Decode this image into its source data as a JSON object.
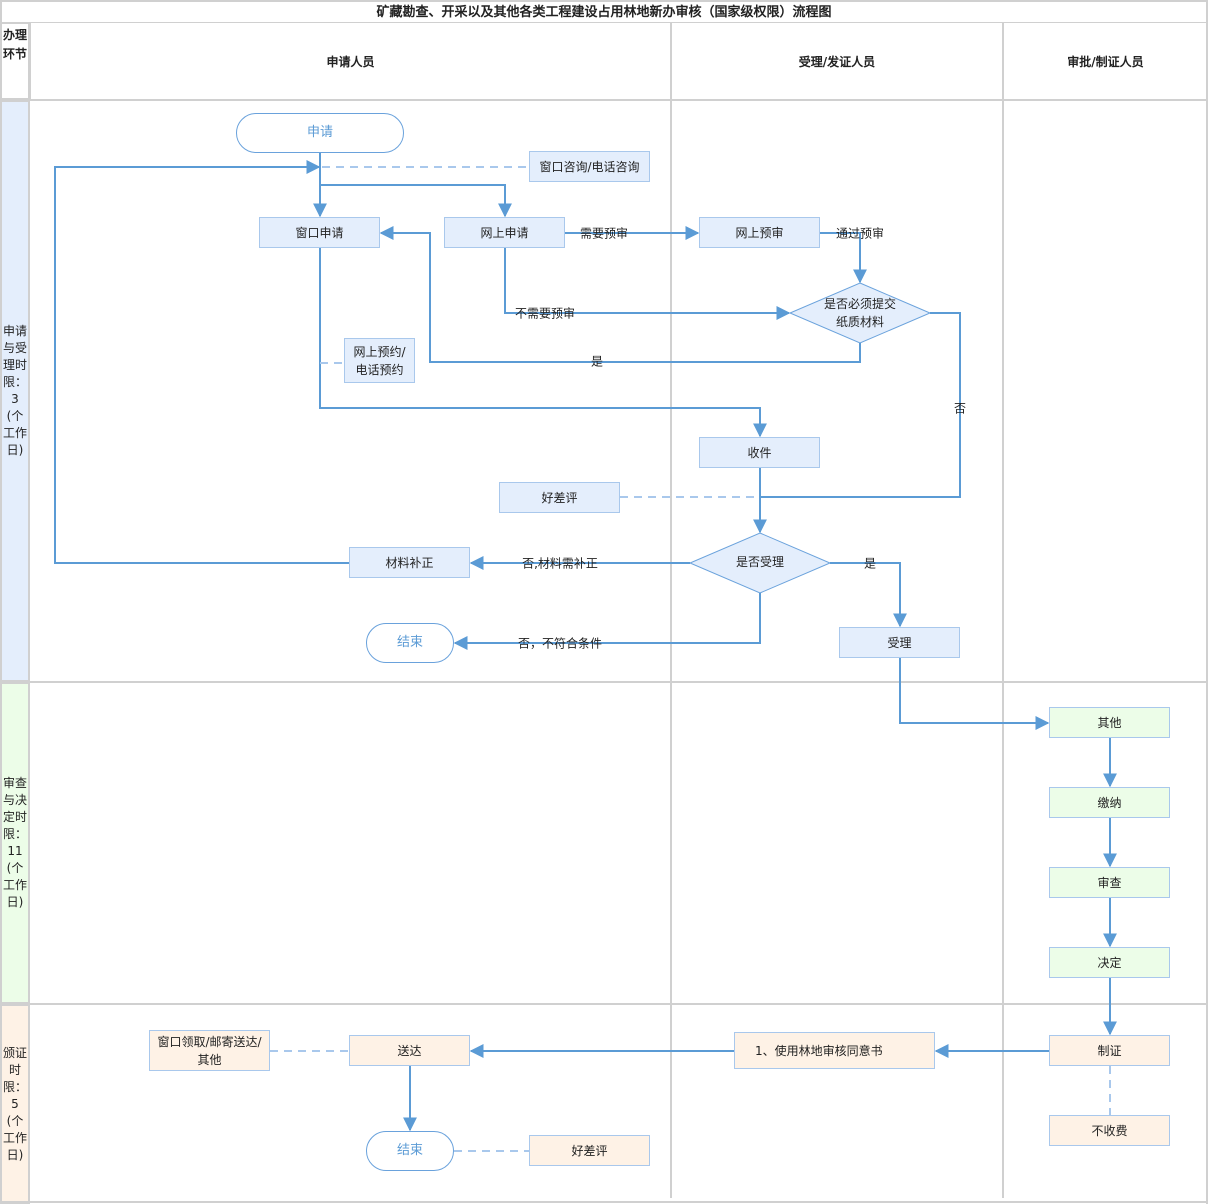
{
  "title": "矿藏勘查、开采以及其他各类工程建设占用林地新办审核（国家级权限）流程图",
  "header": {
    "corner": "办理环节",
    "columns": [
      "申请人员",
      "受理/发证人员",
      "审批/制证人员"
    ]
  },
  "lanes": [
    {
      "label": "申请与受理时限：3(个工作日)",
      "color": "#e4eefc"
    },
    {
      "label": "审查与决定时限：11(个工作日)",
      "color": "#ecfde8"
    },
    {
      "label": "颁证时限：5(个工作日)",
      "color": "#fef2e6"
    }
  ],
  "colors": {
    "line": "#5b9bd5",
    "dashed": "#a9c8ec",
    "grid": "#d0d0d0"
  },
  "nodes": {
    "apply": "申请",
    "consult": "窗口咨询/电话咨询",
    "window_apply": "窗口申请",
    "online_apply": "网上申请",
    "online_precheck": "网上预审",
    "paper_decision": "是否必须提交纸质材料",
    "reserve": "网上预约/电话预约",
    "receive": "收件",
    "rating1": "好差评",
    "accept_decision": "是否受理",
    "supplement": "材料补正",
    "end1": "结束",
    "accept": "受理",
    "other": "其他",
    "pay": "缴纳",
    "review": "审查",
    "decide": "决定",
    "make_cert": "制证",
    "no_fee": "不收费",
    "cert_doc": "1、使用林地审核同意书",
    "deliver": "送达",
    "pickup": "窗口领取/邮寄送达/其他",
    "end2": "结束",
    "rating2": "好差评"
  },
  "edge_labels": {
    "need_precheck": "需要预审",
    "pass_precheck": "通过预审",
    "no_precheck": "不需要预审",
    "yes_paper": "是",
    "no_paper": "否",
    "no_supplement": "否,材料需补正",
    "no_unqualified": "否，不符合条件",
    "yes_accept": "是"
  }
}
